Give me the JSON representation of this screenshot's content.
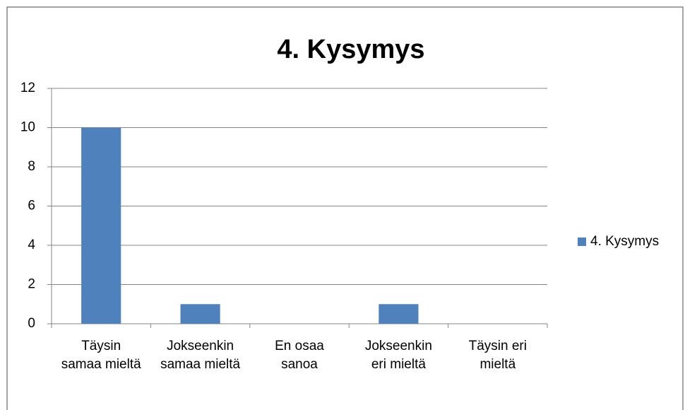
{
  "chart_data": {
    "type": "bar",
    "title": "4. Kysymys",
    "categories": [
      "Täysin samaa mieltä",
      "Jokseenkin samaa mieltä",
      "En osaa sanoa",
      "Jokseenkin eri mieltä",
      "Täysin eri mieltä"
    ],
    "series": [
      {
        "name": "4. Kysymys",
        "color": "#4f81bd",
        "values": [
          10,
          1,
          0,
          1,
          0
        ]
      }
    ],
    "ylim": [
      0,
      12
    ],
    "yticks": [
      0,
      2,
      4,
      6,
      8,
      10,
      12
    ],
    "grid": true,
    "legend": "right"
  }
}
